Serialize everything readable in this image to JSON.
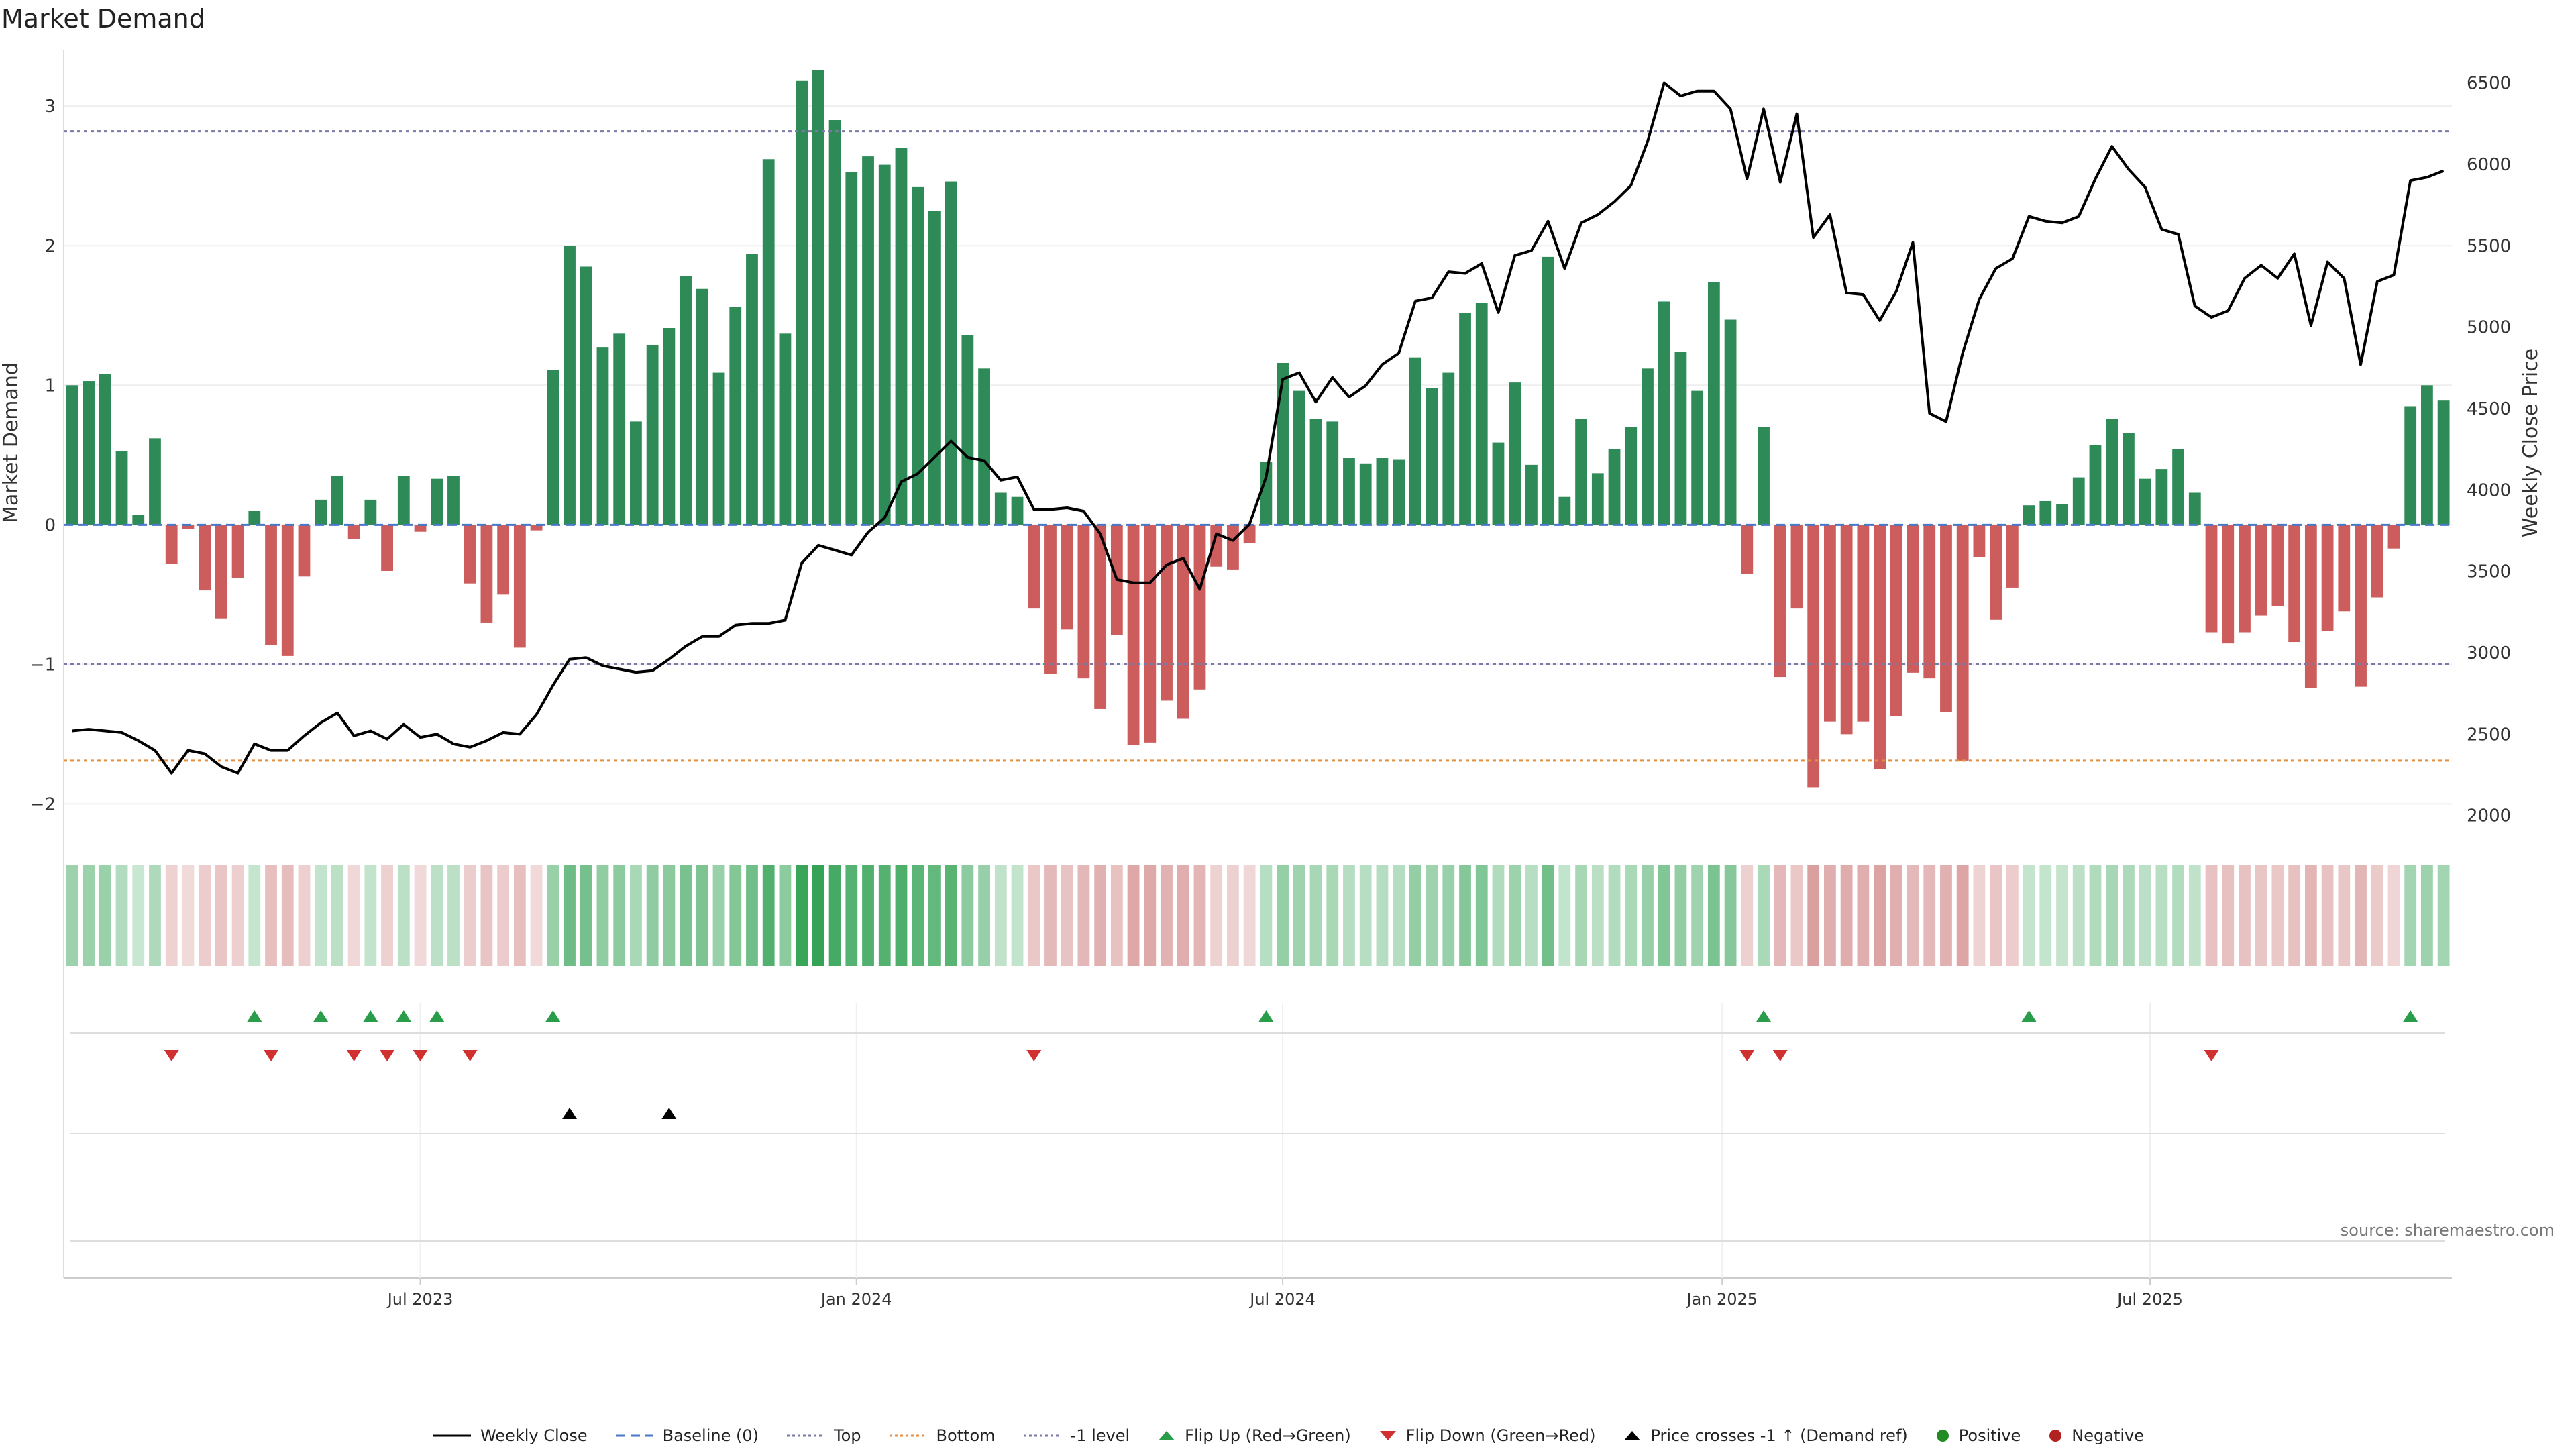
{
  "chart_data": {
    "type": "bar",
    "title": "Market Demand",
    "ylabel": "Market Demand",
    "y2label": "Weekly Close Price",
    "ylim": [
      -2.2,
      3.4
    ],
    "y2lim": [
      1900,
      6700
    ],
    "yticks": [
      -2,
      -1,
      0,
      1,
      2,
      3
    ],
    "ytick_labels": [
      "−2",
      "−1",
      "0",
      "1",
      "2",
      "3"
    ],
    "y2ticks": [
      2000,
      2500,
      3000,
      3500,
      4000,
      4500,
      5000,
      5500,
      6000,
      6500
    ],
    "y2tick_labels": [
      "2000",
      "2500",
      "3000",
      "3500",
      "4000",
      "4500",
      "5000",
      "5500",
      "6000",
      "6500"
    ],
    "xticks": [
      {
        "label": "Jul 2023",
        "index": 21
      },
      {
        "label": "Jan 2024",
        "index": 47.3
      },
      {
        "label": "Jul 2024",
        "index": 73
      },
      {
        "label": "Jan 2025",
        "index": 99.5
      },
      {
        "label": "Jul 2025",
        "index": 125.3
      }
    ],
    "reference_lines": {
      "baseline": 0,
      "top": 2.82,
      "bottom": -1.69,
      "minus_one": -1
    },
    "demand": [
      1.0,
      1.03,
      1.08,
      0.53,
      0.07,
      0.62,
      -0.28,
      -0.03,
      -0.47,
      -0.67,
      -0.38,
      0.1,
      -0.86,
      -0.94,
      -0.37,
      0.18,
      0.35,
      -0.1,
      0.18,
      -0.33,
      0.35,
      -0.05,
      0.33,
      0.35,
      -0.42,
      -0.7,
      -0.5,
      -0.88,
      -0.04,
      1.11,
      2.0,
      1.85,
      1.27,
      1.37,
      0.74,
      1.29,
      1.41,
      1.78,
      1.69,
      1.09,
      1.56,
      1.94,
      2.62,
      1.37,
      3.18,
      3.26,
      2.9,
      2.53,
      2.64,
      2.58,
      2.7,
      2.42,
      2.25,
      2.46,
      1.36,
      1.12,
      0.23,
      0.2,
      -0.6,
      -1.07,
      -0.75,
      -1.1,
      -1.32,
      -0.79,
      -1.58,
      -1.56,
      -1.26,
      -1.39,
      -1.18,
      -0.3,
      -0.32,
      -0.13,
      0.45,
      1.16,
      0.96,
      0.76,
      0.74,
      0.48,
      0.44,
      0.48,
      0.47,
      1.2,
      0.98,
      1.09,
      1.52,
      1.59,
      0.59,
      1.02,
      0.43,
      1.92,
      0.2,
      0.76,
      0.37,
      0.54,
      0.7,
      1.12,
      1.6,
      1.24,
      0.96,
      1.74,
      1.47,
      -0.35,
      0.7,
      -1.09,
      -0.6,
      -1.88,
      -1.41,
      -1.5,
      -1.41,
      -1.75,
      -1.37,
      -1.06,
      -1.1,
      -1.34,
      -1.69,
      -0.23,
      -0.68,
      -0.45,
      0.14,
      0.17,
      0.15,
      0.34,
      0.57,
      0.76,
      0.66,
      0.33,
      0.4,
      0.54,
      0.23,
      -0.77,
      -0.85,
      -0.77,
      -0.65,
      -0.58,
      -0.84,
      -1.17,
      -0.76,
      -0.62,
      -1.16,
      -0.52,
      -0.17,
      0.85,
      1.0,
      0.89
    ],
    "weekly_close": [
      2520,
      2530,
      2520,
      2510,
      2460,
      2400,
      2260,
      2400,
      2380,
      2300,
      2260,
      2440,
      2400,
      2400,
      2490,
      2570,
      2630,
      2490,
      2520,
      2470,
      2560,
      2480,
      2500,
      2440,
      2420,
      2460,
      2510,
      2500,
      2620,
      2800,
      2960,
      2970,
      2920,
      2900,
      2880,
      2890,
      2960,
      3040,
      3100,
      3100,
      3170,
      3180,
      3180,
      3200,
      3550,
      3660,
      3630,
      3600,
      3740,
      3830,
      4050,
      4100,
      4200,
      4300,
      4200,
      4180,
      4060,
      4080,
      3880,
      3880,
      3890,
      3870,
      3730,
      3450,
      3430,
      3430,
      3540,
      3580,
      3390,
      3730,
      3690,
      3790,
      4080,
      4680,
      4720,
      4540,
      4690,
      4570,
      4640,
      4770,
      4840,
      5160,
      5180,
      5340,
      5330,
      5390,
      5090,
      5440,
      5470,
      5650,
      5360,
      5640,
      5690,
      5770,
      5870,
      6140,
      6500,
      6420,
      6450,
      6450,
      6340,
      5910,
      6340,
      5890,
      6310,
      5550,
      5690,
      5210,
      5200,
      5040,
      5220,
      5520,
      4470,
      4420,
      4840,
      5170,
      5360,
      5420,
      5680,
      5650,
      5640,
      5680,
      5910,
      6110,
      5970,
      5860,
      5600,
      5570,
      5130,
      5060,
      5100,
      5300,
      5380,
      5300,
      5450,
      5010,
      5400,
      5300,
      4770,
      5280,
      5320,
      5900,
      5920,
      5960
    ],
    "flip_up_index": [
      11,
      15,
      18,
      20,
      22,
      29,
      72,
      102,
      118,
      141
    ],
    "flip_down_index": [
      6,
      12,
      17,
      19,
      21,
      24,
      58,
      101,
      103,
      129
    ],
    "price_cross_index": [
      30,
      36
    ],
    "series_labels": {
      "weekly_close": "Weekly Close",
      "baseline": "Baseline (0)",
      "top": "Top",
      "bottom": "Bottom",
      "minus_one": "-1 level",
      "flip_up": "Flip Up (Red→Green)",
      "flip_down": "Flip Down (Green→Red)",
      "price_cross": "Price crosses -1 ↑ (Demand ref)",
      "positive": "Positive",
      "negative": "Negative"
    },
    "source": "source: sharemaestro.com"
  },
  "colors": {
    "positive_bar": "#2e8b57",
    "negative_bar": "#cd5c5c",
    "price_line": "#000000",
    "baseline": "#4a78c8",
    "top_line": "#7a7aa8",
    "bottom_line": "#e09040",
    "minus_one_line": "#7a7aa8",
    "flip_up": "#2a9d4a",
    "flip_down": "#d03030",
    "price_cross": "#000000",
    "positive_dot": "#228b22",
    "negative_dot": "#b22222"
  }
}
